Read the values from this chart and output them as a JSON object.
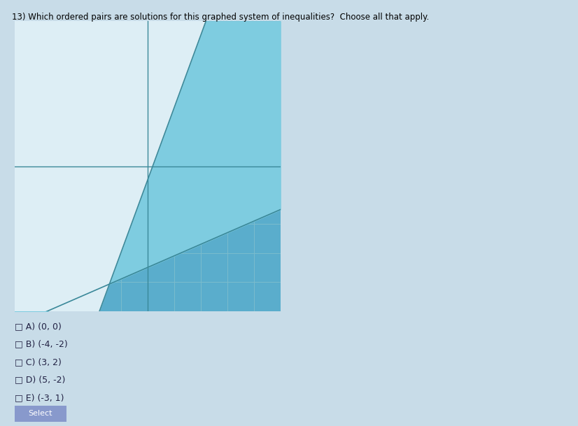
{
  "title": "13) Which ordered pairs are solutions for this graphed system of inequalities?  Choose all that apply.",
  "graph_xlim": [
    -5,
    5
  ],
  "graph_ylim": [
    -5,
    5
  ],
  "grid_color": "#7bbccc",
  "page_bg_color": "#c8dce8",
  "graph_bg_color": "#5aadcc",
  "shade1_color": "#7ecce0",
  "shade1_alpha": 1.0,
  "shade2_color": "#4a9ec8",
  "shade2_alpha": 1.0,
  "white_region_color": "#ddeef5",
  "axis_color": "#3a8899",
  "line1_slope": 0.4,
  "line1_intercept": -3.5,
  "line2_slope": 2.5,
  "line2_intercept": -0.5,
  "choices": [
    "A) (0, 0)",
    "B) (-4, -2)",
    "C) (3, 2)",
    "D) (5, -2)",
    "E) (-3, 1)"
  ],
  "button_color": "#8899cc",
  "button_text": "Select",
  "fig_width": 8.26,
  "fig_height": 6.09
}
